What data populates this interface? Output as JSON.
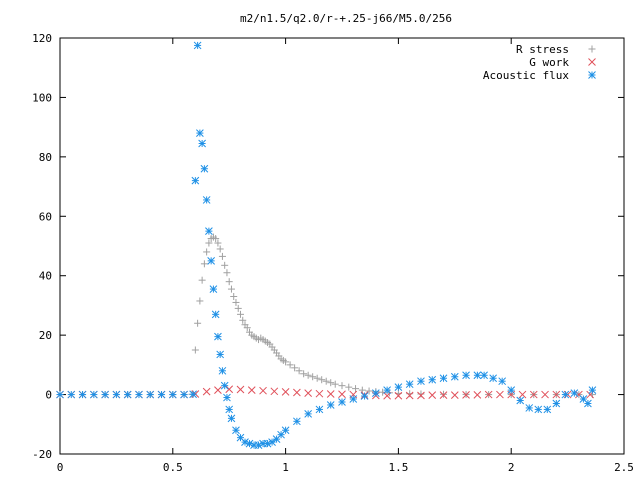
{
  "chart_data": {
    "type": "scatter",
    "title": "m2/n1.5/q2.0/r-+.25-j66/M5.0/256",
    "xlabel": "",
    "ylabel": "",
    "xlim": [
      0,
      2.5
    ],
    "ylim": [
      -20,
      120
    ],
    "xticks": [
      0,
      0.5,
      1,
      1.5,
      2,
      2.5
    ],
    "yticks": [
      -20,
      0,
      20,
      40,
      60,
      80,
      100,
      120
    ],
    "xtick_labels": [
      "0",
      "0.5",
      "1",
      "1.5",
      "2",
      "2.5"
    ],
    "ytick_labels": [
      "-20",
      "0",
      "20",
      "40",
      "60",
      "80",
      "100",
      "120"
    ],
    "grid": false,
    "legend_position": "top-right",
    "series": [
      {
        "name": "R stress",
        "marker": "plus",
        "color": "#a0a0a0",
        "x": [
          0.0,
          0.1,
          0.2,
          0.3,
          0.4,
          0.5,
          0.55,
          0.585,
          0.6,
          0.61,
          0.62,
          0.63,
          0.64,
          0.65,
          0.66,
          0.67,
          0.68,
          0.69,
          0.7,
          0.71,
          0.72,
          0.73,
          0.74,
          0.75,
          0.76,
          0.77,
          0.78,
          0.79,
          0.8,
          0.81,
          0.82,
          0.83,
          0.84,
          0.85,
          0.86,
          0.87,
          0.88,
          0.89,
          0.9,
          0.91,
          0.92,
          0.93,
          0.94,
          0.95,
          0.96,
          0.97,
          0.98,
          0.99,
          1.0,
          1.02,
          1.04,
          1.06,
          1.08,
          1.1,
          1.12,
          1.14,
          1.16,
          1.18,
          1.2,
          1.22,
          1.25,
          1.28,
          1.31,
          1.34,
          1.37,
          1.4,
          1.43,
          1.46,
          1.5,
          1.55,
          1.6,
          1.7,
          1.8,
          1.9,
          2.0,
          2.1,
          2.2,
          2.3,
          2.36
        ],
        "y": [
          0,
          0,
          0,
          0,
          0,
          0,
          0,
          0.1,
          15,
          24,
          31.5,
          38.5,
          44,
          48,
          51,
          52.5,
          53,
          52.5,
          51,
          49,
          46.5,
          43.5,
          41,
          38,
          35.5,
          33,
          31,
          29,
          27,
          25,
          23.5,
          22.5,
          21,
          20,
          19.5,
          19,
          18.5,
          19,
          18.5,
          18,
          17.5,
          17,
          16,
          15,
          14,
          13,
          12,
          11.5,
          11,
          10,
          9,
          8,
          7,
          6.5,
          6,
          5.5,
          5,
          4.5,
          4,
          3.5,
          3,
          2.5,
          2,
          1.5,
          1.2,
          1,
          0.8,
          0.6,
          0.4,
          0.3,
          0.2,
          0.1,
          0.05,
          0,
          0,
          0,
          0,
          0,
          0
        ]
      },
      {
        "name": "G work",
        "marker": "cross",
        "color": "#e0505a",
        "x": [
          0.0,
          0.05,
          0.1,
          0.15,
          0.2,
          0.25,
          0.3,
          0.35,
          0.4,
          0.45,
          0.5,
          0.55,
          0.6,
          0.65,
          0.7,
          0.75,
          0.8,
          0.85,
          0.9,
          0.95,
          1.0,
          1.05,
          1.1,
          1.15,
          1.2,
          1.25,
          1.3,
          1.35,
          1.4,
          1.45,
          1.5,
          1.55,
          1.6,
          1.65,
          1.7,
          1.75,
          1.8,
          1.85,
          1.9,
          1.95,
          2.0,
          2.05,
          2.1,
          2.15,
          2.2,
          2.25,
          2.3,
          2.35
        ],
        "y": [
          0,
          0,
          0,
          0,
          0,
          0,
          0,
          0,
          0,
          0,
          0,
          0,
          0.2,
          1,
          1.5,
          1.8,
          1.7,
          1.5,
          1.3,
          1.1,
          0.9,
          0.7,
          0.5,
          0.3,
          0.2,
          0.1,
          0,
          -0.2,
          -0.3,
          -0.4,
          -0.4,
          -0.3,
          -0.3,
          -0.2,
          -0.2,
          -0.2,
          -0.1,
          -0.1,
          0,
          0,
          0,
          0,
          0,
          0,
          0,
          0,
          0,
          0
        ]
      },
      {
        "name": "Acoustic flux",
        "marker": "star",
        "color": "#1e90e6",
        "x": [
          0.0,
          0.05,
          0.1,
          0.15,
          0.2,
          0.25,
          0.3,
          0.35,
          0.4,
          0.45,
          0.5,
          0.55,
          0.59,
          0.6,
          0.61,
          0.62,
          0.63,
          0.64,
          0.65,
          0.66,
          0.67,
          0.68,
          0.69,
          0.7,
          0.71,
          0.72,
          0.73,
          0.74,
          0.75,
          0.76,
          0.78,
          0.8,
          0.82,
          0.84,
          0.86,
          0.88,
          0.9,
          0.92,
          0.94,
          0.96,
          0.98,
          1.0,
          1.05,
          1.1,
          1.15,
          1.2,
          1.25,
          1.3,
          1.35,
          1.4,
          1.45,
          1.5,
          1.55,
          1.6,
          1.65,
          1.7,
          1.75,
          1.8,
          1.85,
          1.88,
          1.92,
          1.96,
          2.0,
          2.04,
          2.08,
          2.12,
          2.16,
          2.2,
          2.24,
          2.28,
          2.32,
          2.34,
          2.36
        ],
        "y": [
          0,
          0,
          0,
          0,
          0,
          0,
          0,
          0,
          0,
          0,
          0,
          0,
          0.1,
          72,
          117.5,
          88,
          84.5,
          76,
          65.5,
          55,
          45,
          35.5,
          27,
          19.5,
          13.5,
          8,
          3,
          -1,
          -5,
          -8,
          -12,
          -14.5,
          -16,
          -16.5,
          -17,
          -17,
          -16.5,
          -16.5,
          -16,
          -15,
          -13.5,
          -12,
          -9,
          -6.5,
          -5,
          -3.5,
          -2.5,
          -1.5,
          -0.5,
          0.5,
          1.5,
          2.5,
          3.5,
          4.5,
          5,
          5.5,
          6,
          6.5,
          6.5,
          6.5,
          5.5,
          4.5,
          1.5,
          -2,
          -4.5,
          -5,
          -5,
          -3,
          0,
          0.5,
          -1.5,
          -3,
          1.5
        ]
      }
    ]
  }
}
